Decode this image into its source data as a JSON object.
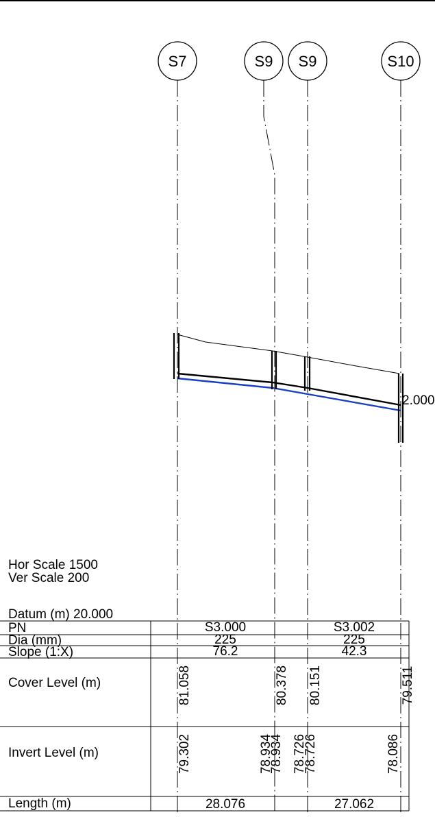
{
  "scale": {
    "horizontal": "Hor Scale 1500",
    "vertical": "Ver Scale 200"
  },
  "datum": "Datum (m) 20.000",
  "cut_label": "2.000",
  "manholes": [
    {
      "id": "m1",
      "label": "S7",
      "cover_level": "81.058",
      "invert_levels": [
        "79.302"
      ]
    },
    {
      "id": "m2",
      "label": "S9",
      "cover_level": "80.378",
      "invert_levels": [
        "78.934",
        "78.934"
      ]
    },
    {
      "id": "m3",
      "label": "S9",
      "cover_level": "80.151",
      "invert_levels": [
        "78.726",
        "78.726"
      ]
    },
    {
      "id": "m4",
      "label": "S10",
      "cover_level": "79.511",
      "invert_levels": [
        "78.086"
      ]
    }
  ],
  "table": {
    "row_labels": {
      "pn": "PN",
      "dia": "Dia (mm)",
      "slope": "Slope (1:X)",
      "cover": "Cover Level (m)",
      "invert": "Invert Level (m)",
      "length": "Length (m)"
    }
  },
  "pipes": [
    {
      "pn": "S3.000",
      "dia": "225",
      "slope": "76.2",
      "length": "28.076"
    },
    {
      "pn": "S3.002",
      "dia": "225",
      "slope": "42.3",
      "length": "27.062"
    }
  ],
  "colors": {
    "line": "#000000",
    "pipe_invert": "#1a3fbf"
  }
}
